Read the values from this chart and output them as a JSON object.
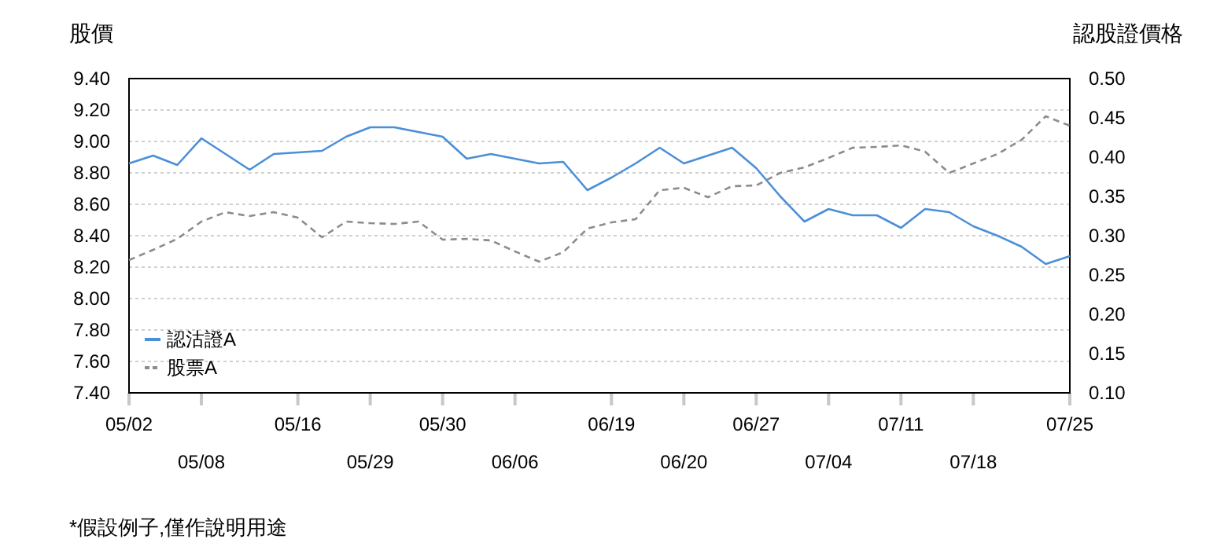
{
  "chart_data": {
    "type": "line",
    "ylabel": "股價",
    "y2label": "認股證價格",
    "categories": [
      "05/02",
      null,
      null,
      "05/08",
      null,
      null,
      null,
      "05/16",
      null,
      null,
      "05/29",
      null,
      null,
      "05/30",
      null,
      null,
      "06/06",
      null,
      null,
      null,
      "06/19",
      null,
      null,
      "06/20",
      null,
      null,
      "06/27",
      null,
      null,
      "07/04",
      null,
      null,
      "07/11",
      null,
      null,
      "07/18",
      null,
      null,
      null,
      "07/25"
    ],
    "series": [
      {
        "name": "認沽證A",
        "color": "#4a8fd8",
        "line_style": "solid",
        "axis": "y",
        "values": [
          8.86,
          8.91,
          8.85,
          9.02,
          8.92,
          8.82,
          8.92,
          8.93,
          8.94,
          9.03,
          9.09,
          9.09,
          9.06,
          9.03,
          8.89,
          8.92,
          8.89,
          8.86,
          8.87,
          8.69,
          8.77,
          8.86,
          8.96,
          8.86,
          8.91,
          8.96,
          8.83,
          8.65,
          8.49,
          8.57,
          8.53,
          8.53,
          8.45,
          8.57,
          8.55,
          8.46,
          8.4,
          8.33,
          8.22,
          8.27
        ]
      },
      {
        "name": "股票A",
        "color": "#8c8c8c",
        "line_style": "dashed",
        "axis": "y2",
        "values": [
          0.269,
          0.282,
          0.296,
          0.318,
          0.33,
          0.325,
          0.33,
          0.323,
          0.298,
          0.318,
          0.316,
          0.315,
          0.318,
          0.295,
          0.296,
          0.294,
          0.28,
          0.267,
          0.279,
          0.309,
          0.317,
          0.321,
          0.358,
          0.361,
          0.349,
          0.363,
          0.364,
          0.38,
          0.387,
          0.399,
          0.412,
          0.413,
          0.415,
          0.407,
          0.38,
          0.392,
          0.404,
          0.422,
          0.452,
          0.44
        ]
      }
    ],
    "ylim": [
      7.4,
      9.4
    ],
    "yticks": [
      {
        "value": 7.4,
        "label": "7.40"
      },
      {
        "value": 7.6,
        "label": "7.60"
      },
      {
        "value": 7.8,
        "label": "7.80"
      },
      {
        "value": 8.0,
        "label": "8.00"
      },
      {
        "value": 8.2,
        "label": "8.20"
      },
      {
        "value": 8.4,
        "label": "8.40"
      },
      {
        "value": 8.6,
        "label": "8.60"
      },
      {
        "value": 8.8,
        "label": "8.80"
      },
      {
        "value": 9.0,
        "label": "9.00"
      },
      {
        "value": 9.2,
        "label": "9.20"
      },
      {
        "value": 9.4,
        "label": "9.40"
      }
    ],
    "y2lim": [
      0.1,
      0.5
    ],
    "y2ticks": [
      {
        "value": 0.1,
        "label": "0.10"
      },
      {
        "value": 0.15,
        "label": "0.15"
      },
      {
        "value": 0.2,
        "label": "0.20"
      },
      {
        "value": 0.25,
        "label": "0.25"
      },
      {
        "value": 0.3,
        "label": "0.30"
      },
      {
        "value": 0.35,
        "label": "0.35"
      },
      {
        "value": 0.4,
        "label": "0.40"
      },
      {
        "value": 0.45,
        "label": "0.45"
      },
      {
        "value": 0.5,
        "label": "0.50"
      }
    ],
    "grid": "y",
    "legend": "bottom left",
    "annotations": [
      "*假設例子,僅作說明用途"
    ]
  }
}
